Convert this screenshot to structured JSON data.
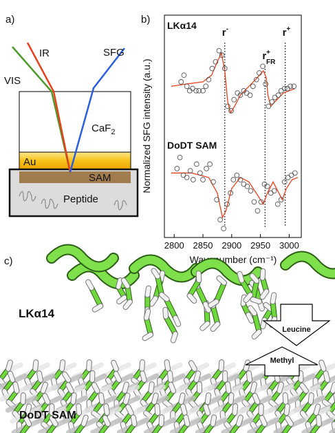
{
  "panel_a": {
    "label": "a)",
    "beams": {
      "ir": "IR",
      "sfg": "SFG",
      "vis": "VIS"
    },
    "layers": {
      "window": {
        "base": "CaF",
        "sub": "2"
      },
      "gold": "Au",
      "sam": "SAM",
      "peptide": "Peptide"
    }
  },
  "chart_data": {
    "type": "scatter",
    "panel_label": "b)",
    "xlabel": "Wavenumber (cm⁻¹)",
    "ylabel": "Normalized SFG intensity (a.u.)",
    "xlim": [
      2783,
      3021
    ],
    "ylim": [
      0,
      10
    ],
    "xticks": [
      2800,
      2850,
      2900,
      2950,
      3000
    ],
    "grid": false,
    "markers": [
      {
        "value": 2888,
        "label": {
          "base": "r",
          "sup": "-"
        }
      },
      {
        "value": 2958,
        "label": {
          "base": "r",
          "sup": "+",
          "sub": "FR"
        }
      },
      {
        "value": 2993,
        "label": {
          "base": "r",
          "sup": "+"
        }
      }
    ],
    "series": [
      {
        "name": "LKα14",
        "color": "#555555",
        "x": [
          2812,
          2817,
          2822,
          2827,
          2832,
          2838,
          2843,
          2850,
          2855,
          2860,
          2866,
          2872,
          2878,
          2883,
          2888,
          2893,
          2899,
          2904,
          2910,
          2915,
          2921,
          2926,
          2932,
          2937,
          2943,
          2948,
          2954,
          2959,
          2964,
          2970,
          2975,
          2981,
          2986,
          2992,
          2997,
          3002,
          3008
        ],
        "values": [
          7.0,
          7.3,
          6.8,
          6.6,
          6.7,
          6.6,
          6.6,
          6.6,
          6.8,
          7.1,
          7.6,
          7.9,
          8.4,
          8.2,
          7.6,
          5.9,
          5.7,
          6.2,
          6.5,
          6.4,
          6.6,
          6.5,
          6.4,
          6.8,
          7.1,
          7.4,
          7.7,
          6.9,
          5.9,
          6.1,
          6.3,
          6.4,
          6.6,
          6.7,
          6.7,
          6.8,
          6.8
        ],
        "fit": {
          "color": "#e8401c",
          "x": [
            2795,
            2820,
            2850,
            2865,
            2875,
            2882,
            2888,
            2893,
            2898,
            2905,
            2915,
            2930,
            2945,
            2955,
            2960,
            2963,
            2968,
            2975,
            2990,
            3010
          ],
          "values": [
            6.8,
            6.9,
            7.0,
            7.3,
            7.9,
            8.3,
            7.5,
            6.1,
            5.6,
            5.9,
            6.4,
            6.8,
            7.2,
            7.5,
            7.2,
            6.4,
            5.9,
            6.1,
            6.5,
            6.7
          ]
        }
      },
      {
        "name": "DoDT SAM",
        "color": "#555555",
        "x": [
          2805,
          2810,
          2816,
          2822,
          2828,
          2833,
          2839,
          2845,
          2850,
          2856,
          2862,
          2868,
          2874,
          2880,
          2886,
          2892,
          2898,
          2903,
          2909,
          2915,
          2921,
          2927,
          2933,
          2939,
          2945,
          2951,
          2957,
          2962,
          2968,
          2974,
          2980,
          2986,
          2992,
          2998,
          3004,
          3010
        ],
        "values": [
          3.1,
          3.6,
          2.8,
          2.7,
          3.0,
          2.6,
          3.3,
          2.9,
          2.6,
          3.1,
          3.3,
          2.5,
          1.7,
          0.8,
          0.4,
          1.5,
          2.0,
          2.6,
          2.8,
          2.6,
          2.4,
          2.3,
          2.1,
          1.6,
          1.2,
          1.6,
          2.4,
          2.3,
          2.0,
          2.1,
          1.5,
          1.7,
          2.5,
          2.7,
          2.8,
          2.9
        ],
        "fit": {
          "color": "#e8401c",
          "x": [
            2795,
            2830,
            2860,
            2875,
            2884,
            2890,
            2900,
            2915,
            2930,
            2945,
            2955,
            2962,
            2972,
            2980,
            2988,
            2995,
            3005,
            3015
          ],
          "values": [
            2.9,
            2.9,
            2.7,
            2.0,
            0.9,
            1.2,
            2.2,
            2.7,
            2.5,
            1.9,
            1.5,
            2.0,
            2.5,
            2.1,
            1.7,
            2.2,
            2.6,
            2.7
          ]
        }
      }
    ]
  },
  "panel_c": {
    "label": "c)",
    "peptide": "LKα14",
    "sam": "DoDT SAM",
    "arrows": {
      "down": "Leucine",
      "up": "Methyl"
    }
  }
}
